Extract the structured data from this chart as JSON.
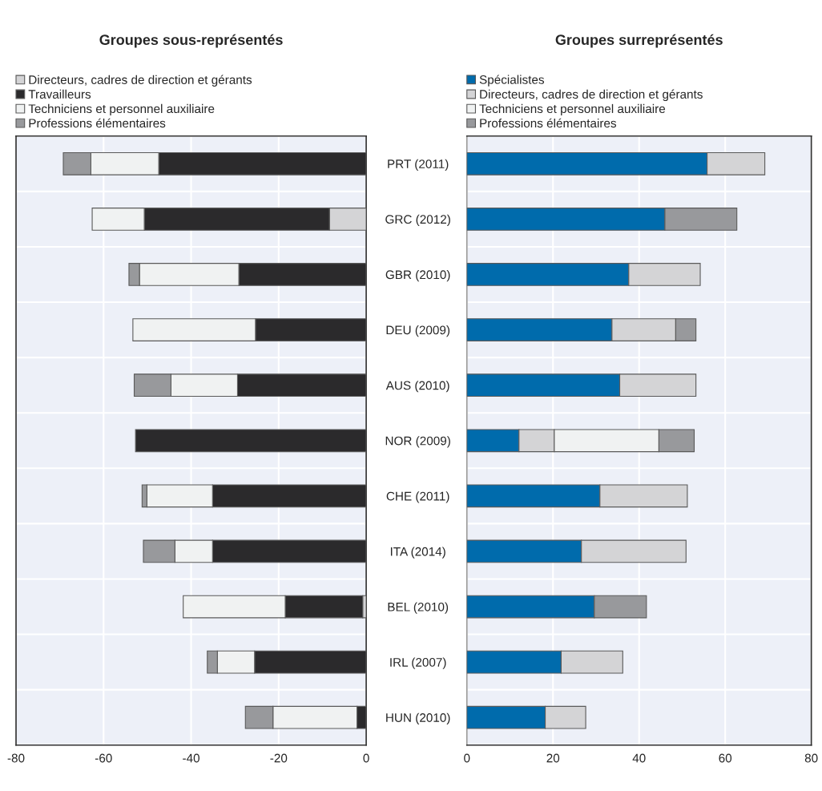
{
  "chart_data": [
    {
      "type": "bar",
      "orientation": "horizontal",
      "stacked": true,
      "title": "Groupes sous-représentés",
      "categories": [
        null,
        null,
        null,
        null,
        null,
        null,
        null,
        null,
        null,
        null,
        null
      ],
      "series": [
        {
          "name": "Directeurs, cadres de direction et gérants",
          "color": "#d4d4d6",
          "values": [
            null,
            -8.4,
            null,
            null,
            null,
            null,
            null,
            null,
            -0.8,
            null,
            null
          ]
        },
        {
          "name": "Travailleurs",
          "color": "#2b2a2c",
          "values": [
            -47.4,
            -42.3,
            -29.1,
            -25.3,
            -29.4,
            -52.7,
            -35.1,
            -35.1,
            -17.7,
            -25.5,
            -2.1
          ]
        },
        {
          "name": "Techniciens et personnel auxiliaire",
          "color": "#f0f2f2",
          "values": [
            -15.5,
            -11.9,
            -22.7,
            -28.0,
            -15.2,
            null,
            -15.0,
            -8.6,
            -23.3,
            -8.5,
            -19.2
          ]
        },
        {
          "name": "Professions élémentaires",
          "color": "#98999c",
          "values": [
            -6.3,
            null,
            -2.4,
            null,
            -8.4,
            null,
            -1.1,
            -7.2,
            null,
            -2.3,
            -6.3
          ]
        }
      ],
      "xlim": [
        -80,
        0
      ],
      "xticks": [
        -80,
        -60,
        -40,
        -20,
        0
      ],
      "grid": true,
      "legend": "top",
      "tick_labels": "x"
    },
    {
      "type": "bar",
      "orientation": "horizontal",
      "stacked": true,
      "title": "Groupes surreprésentés",
      "categories": [
        "PRT (2011)",
        "GRC (2012)",
        "GBR (2010)",
        "DEU (2009)",
        "AUS (2010)",
        "NOR (2009)",
        "CHE (2011)",
        "ITA (2014)",
        "BEL (2010)",
        "IRL (2007)",
        "HUN (2010)"
      ],
      "series": [
        {
          "name": "Spécialistes",
          "color": "#006bac",
          "values": [
            55.8,
            46.0,
            37.6,
            33.7,
            35.5,
            12.1,
            30.9,
            26.6,
            29.6,
            21.9,
            18.2
          ]
        },
        {
          "name": "Directeurs, cadres de direction et gérants",
          "color": "#d4d4d6",
          "values": [
            13.4,
            null,
            16.6,
            14.8,
            17.7,
            8.2,
            20.3,
            24.3,
            null,
            14.3,
            9.4
          ]
        },
        {
          "name": "Techniciens et personnel auxiliaire",
          "color": "#f0f2f2",
          "values": [
            null,
            null,
            null,
            null,
            null,
            24.3,
            null,
            null,
            null,
            null,
            null
          ]
        },
        {
          "name": "Professions élémentaires",
          "color": "#98999c",
          "values": [
            null,
            16.7,
            null,
            4.7,
            null,
            8.2,
            null,
            null,
            12.1,
            null,
            null
          ]
        }
      ],
      "xlim": [
        0,
        80
      ],
      "xticks": [
        0,
        20,
        40,
        60,
        80
      ],
      "grid": true,
      "legend": "top"
    }
  ]
}
